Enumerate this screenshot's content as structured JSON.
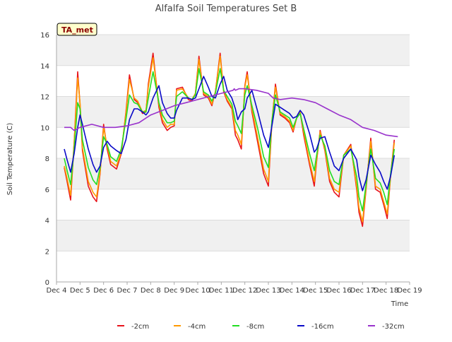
{
  "chart_data": {
    "type": "line",
    "title": "Alfalfa Soil Temperatures Set B",
    "xlabel": "Time",
    "ylabel": "Soil Temperature (C)",
    "badge": "TA_met",
    "ylim": [
      0,
      16
    ],
    "xlim": [
      0,
      15
    ],
    "yticks": [
      0,
      2,
      4,
      6,
      8,
      10,
      12,
      14,
      16
    ],
    "xtick_labels": [
      "Dec 4",
      "Dec 5",
      "Dec 6",
      "Dec 7",
      "Dec 8",
      "Dec 9",
      "Dec 10",
      "Dec 11",
      "Dec 12",
      "Dec 13",
      "Dec 14",
      "Dec 15",
      "Dec 16",
      "Dec 17",
      "Dec 18",
      "Dec 19"
    ],
    "x_units": "days since Dec 4",
    "grid": true,
    "legend_position": "bottom",
    "series": [
      {
        "name": "-2cm",
        "color": "#e8141c",
        "x": [
          0.33,
          0.45,
          0.6,
          0.75,
          0.9,
          1.0,
          1.1,
          1.35,
          1.55,
          1.7,
          1.85,
          2.0,
          2.15,
          2.3,
          2.55,
          2.75,
          2.95,
          3.1,
          3.3,
          3.45,
          3.65,
          3.8,
          3.9,
          4.1,
          4.35,
          4.5,
          4.7,
          4.85,
          5.0,
          5.1,
          5.35,
          5.6,
          5.75,
          5.9,
          6.05,
          6.25,
          6.45,
          6.6,
          6.75,
          6.95,
          7.1,
          7.25,
          7.45,
          7.6,
          7.7,
          7.85,
          8.0,
          8.1,
          8.3,
          8.55,
          8.8,
          9.0,
          9.15,
          9.3,
          9.5,
          9.7,
          9.9,
          10.05,
          10.2,
          10.35,
          10.5,
          10.75,
          10.95,
          11.05,
          11.2,
          11.4,
          11.6,
          11.8,
          12.0,
          12.2,
          12.5,
          12.75,
          12.85,
          13.0,
          13.15,
          13.35,
          13.55,
          13.75,
          13.9,
          14.05,
          14.2,
          14.35
        ],
        "y": [
          7.4,
          6.5,
          5.3,
          9.0,
          13.6,
          11.5,
          8.5,
          6.2,
          5.5,
          5.2,
          7.0,
          10.2,
          8.6,
          7.6,
          7.3,
          8.3,
          11.0,
          13.4,
          11.8,
          11.6,
          10.9,
          11.0,
          12.8,
          14.8,
          11.3,
          10.3,
          9.8,
          10.0,
          10.1,
          12.5,
          12.6,
          11.8,
          11.7,
          12.2,
          14.6,
          12.1,
          11.9,
          11.4,
          12.3,
          14.8,
          12.3,
          11.7,
          11.2,
          9.5,
          9.2,
          8.6,
          12.7,
          13.6,
          11.0,
          9.0,
          7.0,
          6.2,
          10.3,
          12.8,
          10.8,
          10.6,
          10.3,
          9.7,
          10.6,
          11.0,
          9.5,
          7.6,
          6.2,
          7.8,
          9.8,
          8.5,
          6.5,
          5.8,
          5.5,
          8.2,
          8.9,
          6.0,
          4.5,
          3.6,
          6.0,
          9.3,
          6.0,
          5.8,
          5.0,
          4.1,
          7.0,
          9.2
        ]
      },
      {
        "name": "-4cm",
        "color": "#ff9900",
        "x": [
          0.33,
          0.45,
          0.6,
          0.75,
          0.9,
          1.0,
          1.1,
          1.35,
          1.55,
          1.7,
          1.85,
          2.0,
          2.15,
          2.3,
          2.55,
          2.75,
          2.95,
          3.1,
          3.3,
          3.45,
          3.65,
          3.8,
          3.9,
          4.1,
          4.35,
          4.5,
          4.7,
          4.85,
          5.0,
          5.1,
          5.35,
          5.6,
          5.75,
          5.9,
          6.05,
          6.25,
          6.45,
          6.6,
          6.75,
          6.95,
          7.1,
          7.25,
          7.45,
          7.6,
          7.7,
          7.85,
          8.0,
          8.1,
          8.3,
          8.55,
          8.8,
          9.0,
          9.15,
          9.3,
          9.5,
          9.7,
          9.9,
          10.05,
          10.2,
          10.35,
          10.5,
          10.75,
          10.95,
          11.05,
          11.2,
          11.4,
          11.6,
          11.8,
          12.0,
          12.2,
          12.5,
          12.75,
          12.85,
          13.0,
          13.15,
          13.35,
          13.55,
          13.75,
          13.9,
          14.05,
          14.2,
          14.35
        ],
        "y": [
          7.5,
          6.7,
          5.6,
          9.0,
          13.2,
          11.6,
          8.7,
          6.5,
          5.8,
          5.5,
          7.1,
          10.0,
          8.8,
          7.8,
          7.5,
          8.4,
          10.9,
          13.1,
          11.9,
          11.7,
          11.0,
          11.1,
          12.6,
          14.5,
          11.5,
          10.5,
          10.0,
          10.2,
          10.2,
          12.4,
          12.5,
          11.9,
          11.8,
          12.2,
          14.4,
          12.2,
          12.0,
          11.5,
          12.3,
          14.6,
          12.4,
          11.8,
          11.3,
          9.8,
          9.5,
          8.9,
          12.6,
          13.4,
          11.2,
          9.3,
          7.3,
          6.5,
          10.4,
          12.6,
          10.9,
          10.7,
          10.4,
          9.8,
          10.6,
          11.0,
          9.7,
          7.8,
          6.5,
          7.9,
          9.7,
          8.6,
          6.7,
          6.0,
          5.8,
          8.2,
          8.8,
          6.2,
          4.8,
          3.9,
          6.1,
          9.1,
          6.2,
          6.0,
          5.2,
          4.4,
          7.0,
          9.0
        ]
      },
      {
        "name": "-8cm",
        "color": "#22dd22",
        "x": [
          0.33,
          0.45,
          0.6,
          0.75,
          0.9,
          1.0,
          1.1,
          1.35,
          1.55,
          1.7,
          1.85,
          2.0,
          2.15,
          2.3,
          2.55,
          2.75,
          2.95,
          3.1,
          3.3,
          3.45,
          3.65,
          3.8,
          3.9,
          4.1,
          4.35,
          4.5,
          4.7,
          4.85,
          5.0,
          5.1,
          5.35,
          5.6,
          5.75,
          5.9,
          6.05,
          6.25,
          6.45,
          6.6,
          6.75,
          6.95,
          7.1,
          7.25,
          7.45,
          7.6,
          7.7,
          7.85,
          8.0,
          8.1,
          8.3,
          8.55,
          8.8,
          9.0,
          9.15,
          9.3,
          9.5,
          9.7,
          9.9,
          10.05,
          10.2,
          10.35,
          10.5,
          10.75,
          10.95,
          11.05,
          11.2,
          11.4,
          11.6,
          11.8,
          12.0,
          12.2,
          12.5,
          12.75,
          12.85,
          13.0,
          13.15,
          13.35,
          13.55,
          13.75,
          13.9,
          14.05,
          14.2,
          14.35
        ],
        "y": [
          8.0,
          7.2,
          6.3,
          8.6,
          11.6,
          11.2,
          9.2,
          7.4,
          6.6,
          6.3,
          7.4,
          9.4,
          8.9,
          8.1,
          7.8,
          8.6,
          10.5,
          12.1,
          11.6,
          11.5,
          11.0,
          11.0,
          11.9,
          13.6,
          11.6,
          10.8,
          10.3,
          10.3,
          10.4,
          12.0,
          12.3,
          11.9,
          11.8,
          12.1,
          13.8,
          12.3,
          12.1,
          11.7,
          12.2,
          13.8,
          12.4,
          12.0,
          11.5,
          10.4,
          10.1,
          9.6,
          12.1,
          12.7,
          11.4,
          9.9,
          8.1,
          7.4,
          10.4,
          12.1,
          11.0,
          10.8,
          10.6,
          10.0,
          10.6,
          10.9,
          9.9,
          8.3,
          7.2,
          8.2,
          9.5,
          8.8,
          7.2,
          6.5,
          6.3,
          8.2,
          8.6,
          6.8,
          5.5,
          4.6,
          6.3,
          8.6,
          6.7,
          6.4,
          5.8,
          5.0,
          7.1,
          8.6
        ]
      },
      {
        "name": "-16cm",
        "color": "#0a0ac8",
        "x": [
          0.33,
          0.45,
          0.6,
          0.75,
          0.9,
          1.0,
          1.1,
          1.35,
          1.55,
          1.7,
          1.85,
          2.0,
          2.15,
          2.3,
          2.55,
          2.75,
          2.95,
          3.1,
          3.3,
          3.45,
          3.65,
          3.8,
          3.9,
          4.1,
          4.35,
          4.5,
          4.7,
          4.85,
          5.0,
          5.1,
          5.35,
          5.6,
          5.75,
          5.9,
          6.05,
          6.25,
          6.45,
          6.6,
          6.75,
          6.95,
          7.1,
          7.25,
          7.45,
          7.6,
          7.7,
          7.85,
          8.0,
          8.1,
          8.3,
          8.55,
          8.8,
          9.0,
          9.15,
          9.3,
          9.5,
          9.7,
          9.9,
          10.05,
          10.2,
          10.35,
          10.5,
          10.75,
          10.95,
          11.05,
          11.2,
          11.4,
          11.6,
          11.8,
          12.0,
          12.2,
          12.5,
          12.75,
          12.85,
          13.0,
          13.15,
          13.35,
          13.55,
          13.75,
          13.9,
          14.05,
          14.2,
          14.35
        ],
        "y": [
          8.6,
          7.9,
          7.1,
          8.3,
          10.0,
          10.8,
          10.2,
          8.6,
          7.6,
          7.1,
          7.5,
          8.7,
          9.1,
          8.8,
          8.5,
          8.3,
          9.2,
          10.5,
          11.2,
          11.2,
          11.0,
          10.8,
          11.0,
          11.9,
          12.7,
          11.6,
          10.9,
          10.6,
          10.6,
          11.1,
          11.9,
          11.9,
          11.8,
          11.9,
          12.5,
          13.3,
          12.6,
          12.0,
          11.9,
          12.8,
          13.3,
          12.4,
          11.9,
          11.2,
          10.5,
          11.0,
          11.2,
          11.9,
          12.4,
          11.0,
          9.5,
          8.7,
          10.1,
          11.5,
          11.3,
          11.1,
          10.9,
          10.6,
          10.7,
          11.1,
          10.8,
          9.6,
          8.4,
          8.6,
          9.3,
          9.4,
          8.4,
          7.5,
          7.2,
          8.0,
          8.6,
          7.9,
          6.8,
          5.9,
          6.6,
          8.2,
          7.6,
          7.1,
          6.5,
          6.0,
          6.9,
          8.2
        ]
      },
      {
        "name": "-32cm",
        "color": "#9933cc",
        "x": [
          0.33,
          0.6,
          0.75,
          1.0,
          1.5,
          2.0,
          2.5,
          3.0,
          3.5,
          4.0,
          4.5,
          5.0,
          5.5,
          6.0,
          6.5,
          7.0,
          7.5,
          7.55,
          7.6,
          7.75,
          8.0,
          8.5,
          9.0,
          9.2,
          9.5,
          10.0,
          10.5,
          11.0,
          11.5,
          12.0,
          12.5,
          13.0,
          13.5,
          14.0,
          14.5
        ],
        "y": [
          10.0,
          10.0,
          9.8,
          10.0,
          10.2,
          10.0,
          10.0,
          10.1,
          10.3,
          10.8,
          11.1,
          11.4,
          11.6,
          11.8,
          12.0,
          12.2,
          12.4,
          12.5,
          12.4,
          12.5,
          12.5,
          12.4,
          12.2,
          11.9,
          11.8,
          11.9,
          11.8,
          11.6,
          11.2,
          10.8,
          10.5,
          10.0,
          9.8,
          9.5,
          9.4
        ]
      }
    ]
  }
}
